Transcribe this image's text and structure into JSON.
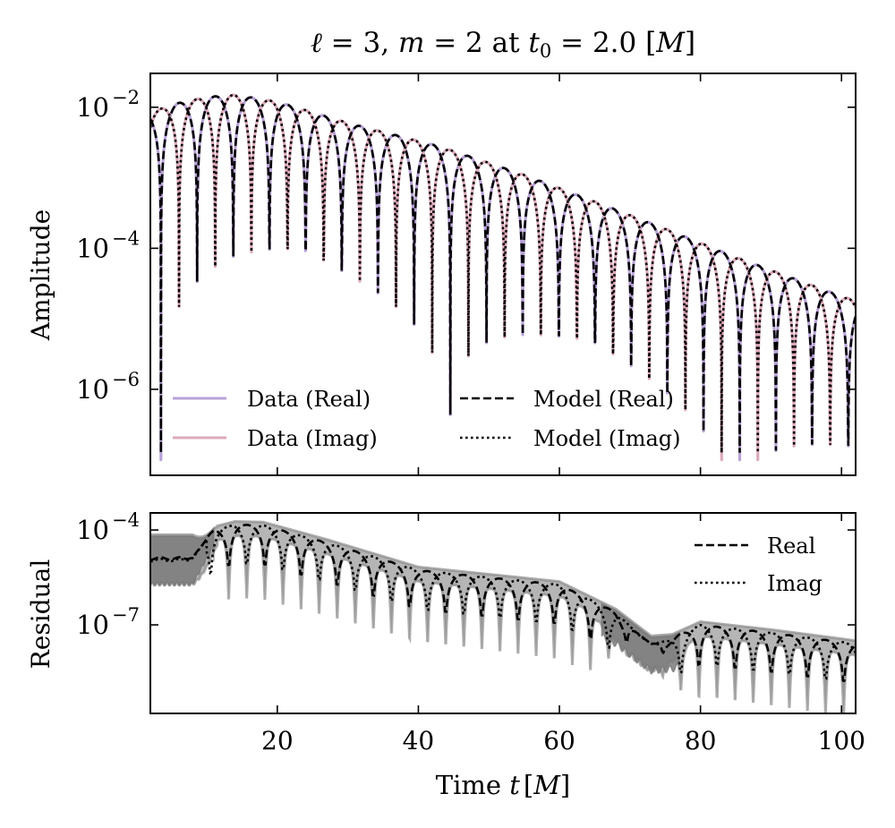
{
  "chart_data": [
    {
      "panel": "top",
      "type": "line",
      "title": "ℓ = 3, m = 2 at t₀ = 2.0 [M]",
      "title_parts": {
        "ell": "ℓ",
        "ell_eq": " = 3, ",
        "m": "m",
        "m_eq": " = 2 at ",
        "t": "t",
        "sub": "0",
        "t_eq": " = 2.0 ",
        "unit_open": "[",
        "unit": "M",
        "unit_close": "]"
      },
      "xlabel": "",
      "ylabel": "Amplitude",
      "xscale": "linear",
      "yscale": "log",
      "xlim": [
        2,
        102
      ],
      "ylim_log10": [
        -7.22,
        -1.52
      ],
      "xticks": [
        20,
        40,
        60,
        80,
        100
      ],
      "yticks": [
        {
          "value_log10": -2,
          "base": "10",
          "exp": "−2"
        },
        {
          "value_log10": -4,
          "base": "10",
          "exp": "−4"
        },
        {
          "value_log10": -6,
          "base": "10",
          "exp": "−6"
        }
      ],
      "grid": false,
      "model": {
        "omega": 0.6125,
        "real_zero_t": 3.5,
        "envelope": [
          [
            2,
            0.0085
          ],
          [
            6,
            0.0115
          ],
          [
            10,
            0.014
          ],
          [
            14,
            0.015
          ],
          [
            20,
            0.012
          ],
          [
            30,
            0.006
          ],
          [
            43,
            0.0028
          ],
          [
            55,
            0.0011
          ],
          [
            65,
            0.00046
          ],
          [
            75,
            0.00019
          ],
          [
            85,
            7.5e-05
          ],
          [
            100,
            2.1e-05
          ],
          [
            102,
            1.8e-05
          ]
        ]
      },
      "series": [
        {
          "name": "Data (Real)",
          "part": "real",
          "style": "solid",
          "color": "#b9a2d8"
        },
        {
          "name": "Data (Imag)",
          "part": "imag",
          "style": "solid",
          "color": "#dcaab9"
        },
        {
          "name": "Model (Real)",
          "part": "real",
          "style": "dashed",
          "color": "#000000"
        },
        {
          "name": "Model (Imag)",
          "part": "imag",
          "style": "dotted",
          "color": "#000000"
        }
      ],
      "legend": {
        "location": "lower-left",
        "columns": 2
      }
    },
    {
      "panel": "bottom",
      "type": "line",
      "title": "",
      "xlabel": "Time t [M]",
      "xlabel_parts": {
        "word": "Time ",
        "t": "t",
        "unit_open": "[",
        "unit": "M",
        "unit_close": "]"
      },
      "ylabel": "Residual",
      "xscale": "linear",
      "yscale": "log",
      "xlim": [
        2,
        102
      ],
      "ylim_log10": [
        -9.8,
        -3.46
      ],
      "xticks": [
        20,
        40,
        60,
        80,
        100
      ],
      "xtick_labels": [
        "20",
        "40",
        "60",
        "80",
        "100"
      ],
      "yticks": [
        {
          "value_log10": -4,
          "base": "10",
          "exp": "−4"
        },
        {
          "value_log10": -7,
          "base": "10",
          "exp": "−7"
        }
      ],
      "grid": false,
      "residual": {
        "early_plateau": {
          "t_end": 10,
          "real_log10": -4.9,
          "imag_log10": -4.95,
          "band_top_log10": -4.15,
          "band_bottom_log10": -5.7
        },
        "peak_envelope_log10": [
          [
            2,
            -4.85
          ],
          [
            8,
            -4.7
          ],
          [
            11,
            -4.0
          ],
          [
            14,
            -3.83
          ],
          [
            18,
            -3.85
          ],
          [
            27,
            -4.4
          ],
          [
            40,
            -5.27
          ],
          [
            60,
            -5.73
          ],
          [
            68,
            -6.6
          ],
          [
            73,
            -7.45
          ],
          [
            76,
            -7.4
          ],
          [
            80,
            -7.0
          ],
          [
            90,
            -7.25
          ],
          [
            100,
            -7.54
          ],
          [
            102,
            -7.6
          ]
        ],
        "dip_depth_decades": 2.0,
        "flat_region": [
          68,
          77
        ]
      },
      "series": [
        {
          "name": "Real",
          "style": "dashed",
          "color": "#000000"
        },
        {
          "name": "Imag",
          "style": "dotted",
          "color": "#000000"
        },
        {
          "name": "uncertainty band",
          "style": "fill",
          "color": "#808080"
        }
      ],
      "legend": {
        "location": "upper-right",
        "columns": 1
      }
    }
  ]
}
